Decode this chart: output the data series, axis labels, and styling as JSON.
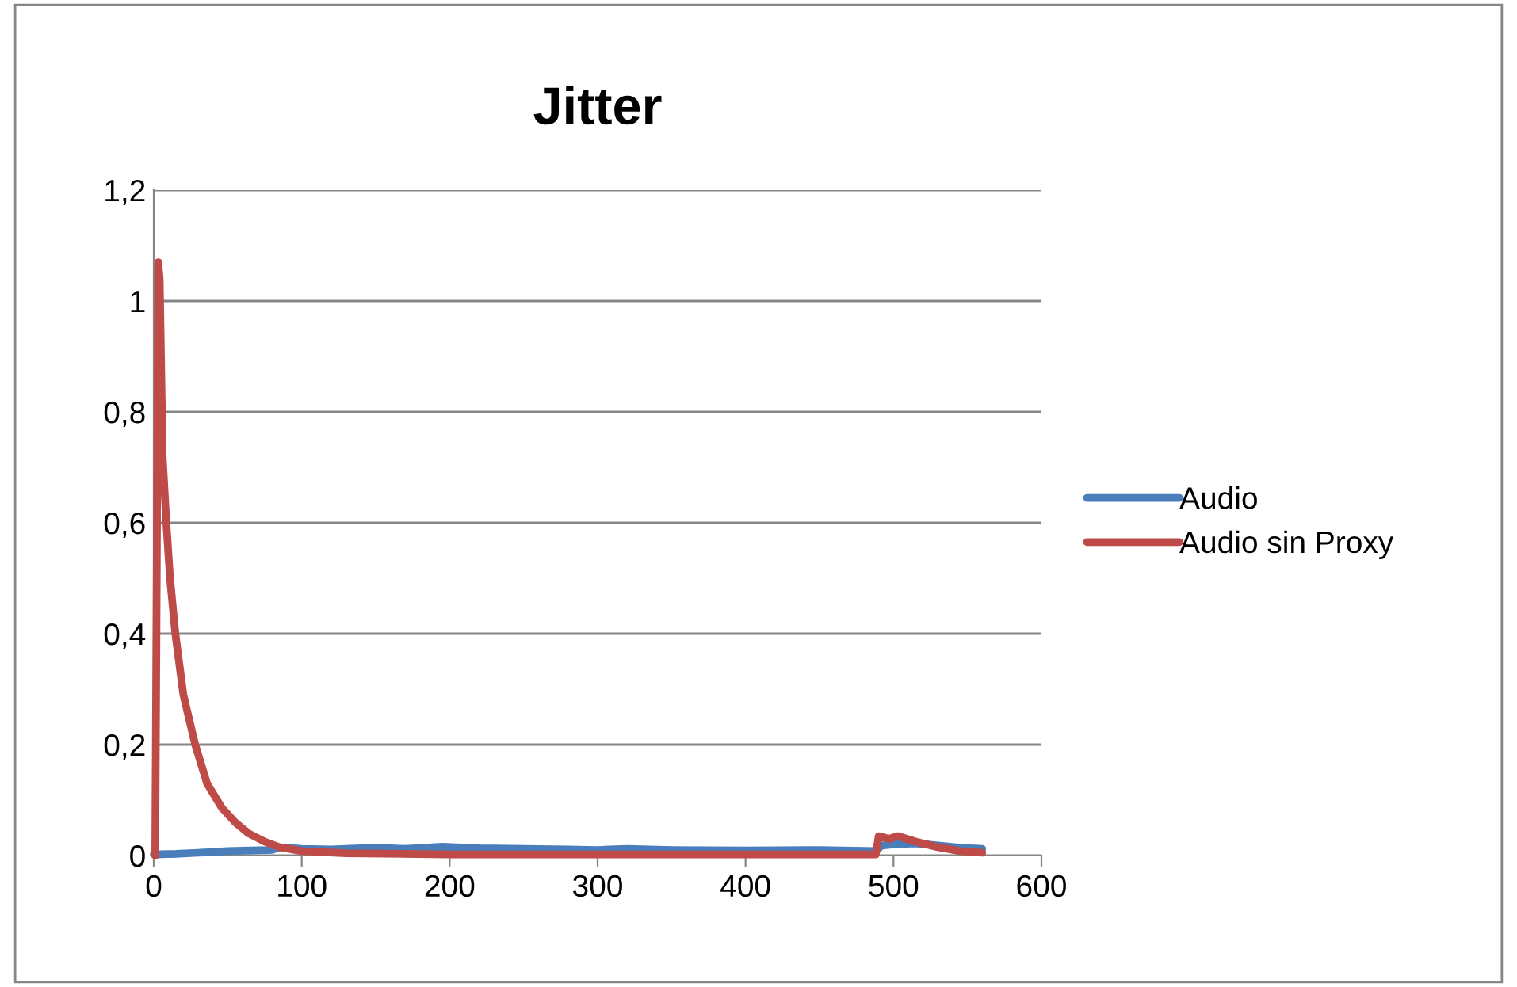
{
  "chart_data": {
    "type": "line",
    "title": "Jitter",
    "xlim": [
      0,
      600
    ],
    "xticks": [
      0,
      100,
      200,
      300,
      400,
      500,
      600
    ],
    "ylim": [
      0,
      1.2
    ],
    "yticks": [
      {
        "value": 0,
        "label": "0"
      },
      {
        "value": 0.2,
        "label": "0,2"
      },
      {
        "value": 0.4,
        "label": "0,4"
      },
      {
        "value": 0.6,
        "label": "0,6"
      },
      {
        "value": 0.8,
        "label": "0,8"
      },
      {
        "value": 1,
        "label": "1"
      },
      {
        "value": 1.2,
        "label": "1,2"
      }
    ],
    "grid": "y",
    "legend": "right",
    "marker": "none",
    "line_style": "solid",
    "series": [
      {
        "name": "Audio",
        "color": "#4a7ebb",
        "x": [
          0,
          15,
          30,
          50,
          65,
          80,
          85,
          100,
          120,
          150,
          170,
          195,
          220,
          250,
          280,
          300,
          320,
          350,
          400,
          450,
          488,
          492,
          500,
          515,
          530,
          545,
          560
        ],
        "values": [
          0.002,
          0.003,
          0.005,
          0.008,
          0.009,
          0.01,
          0.015,
          0.012,
          0.011,
          0.014,
          0.012,
          0.016,
          0.013,
          0.012,
          0.011,
          0.01,
          0.012,
          0.01,
          0.009,
          0.01,
          0.008,
          0.018,
          0.02,
          0.022,
          0.018,
          0.014,
          0.012
        ]
      },
      {
        "name": "Audio sin Proxy",
        "color": "#be4b48",
        "x": [
          1,
          2,
          3,
          4,
          6,
          8.5,
          11,
          14.6,
          20,
          28,
          36,
          46,
          55,
          64,
          75,
          85,
          100,
          130,
          200,
          300,
          400,
          488,
          490,
          497,
          503,
          515,
          530,
          545,
          560
        ],
        "values": [
          0,
          0.5,
          1.07,
          1.04,
          0.72,
          0.6,
          0.5,
          0.4,
          0.29,
          0.2,
          0.13,
          0.086,
          0.06,
          0.04,
          0.025,
          0.015,
          0.008,
          0.004,
          0.002,
          0.002,
          0.002,
          0.002,
          0.035,
          0.03,
          0.035,
          0.025,
          0.015,
          0.008,
          0.005
        ]
      }
    ]
  }
}
